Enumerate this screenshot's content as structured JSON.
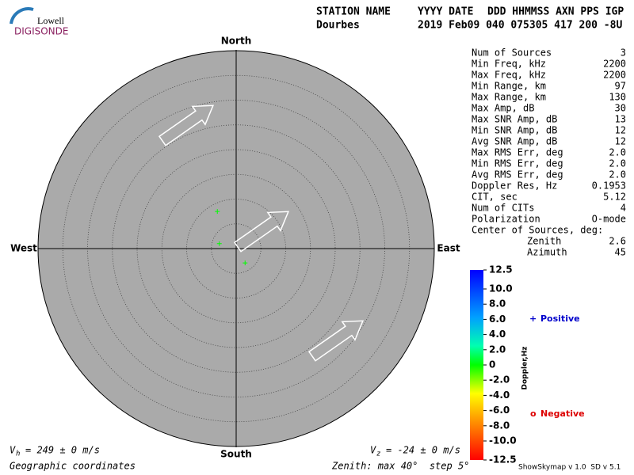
{
  "logo": {
    "top": "Lowell",
    "bottom": "DIGISONDE"
  },
  "header": {
    "columns": [
      "STATION NAME",
      "YYYY DATE",
      "DDD HHMMSS AXN PPS IGP"
    ],
    "values": [
      "Dourbes",
      "2019 Feb09 040 075305 417 200 -8U"
    ]
  },
  "stats": {
    "rows": [
      [
        "Num of Sources",
        "3"
      ],
      [
        "Min Freq, kHz",
        "2200"
      ],
      [
        "Max Freq, kHz",
        "2200"
      ],
      [
        "Min Range, km",
        "97"
      ],
      [
        "Max Range, km",
        "130"
      ],
      [
        "Max Amp, dB",
        "30"
      ],
      [
        "Max SNR Amp, dB",
        "13"
      ],
      [
        "Min SNR Amp, dB",
        "12"
      ],
      [
        "Avg SNR Amp, dB",
        "12"
      ],
      [
        "Max RMS Err, deg",
        "2.0"
      ],
      [
        "Min RMS Err, deg",
        "2.0"
      ],
      [
        "Avg RMS Err, deg",
        "2.0"
      ],
      [
        "Doppler Res, Hz",
        "0.1953"
      ],
      [
        "CIT, sec",
        "5.12"
      ],
      [
        "Num of CITs",
        "4"
      ],
      [
        "Polarization",
        "O-mode"
      ]
    ],
    "center_label": "Center of Sources, deg:",
    "center_rows": [
      [
        "Zenith",
        "2.6"
      ],
      [
        "Azimuth",
        "45"
      ]
    ]
  },
  "chart_data": {
    "type": "skymap",
    "directions": {
      "north": "North",
      "south": "South",
      "east": "East",
      "west": "West"
    },
    "xlim": [
      -40,
      40
    ],
    "ylim": [
      -40,
      40
    ],
    "rticks": [
      5,
      10,
      15,
      20,
      25,
      30,
      35,
      40
    ],
    "grid": true,
    "x": [
      -3.8,
      -3.4,
      1.8
    ],
    "values": [
      7.5,
      1.0,
      -2.9
    ],
    "color": "#00ff00"
  },
  "colorbar": {
    "title": "Doppler,Hz",
    "ylim": [
      -12.5,
      12.5
    ],
    "yticks": [
      12.5,
      {
        "value": 10,
        "label": "10.0"
      },
      {
        "value": 8,
        "label": "8.0"
      },
      {
        "value": 6,
        "label": "6.0"
      },
      {
        "value": 4,
        "label": "4.0"
      },
      {
        "value": 2,
        "label": "2.0"
      },
      0,
      {
        "value": -2,
        "label": "-2.0"
      },
      {
        "value": -4,
        "label": "-4.0"
      },
      {
        "value": -6,
        "label": "-6.0"
      },
      {
        "value": -8,
        "label": "-8.0"
      },
      {
        "value": -10,
        "label": "-10.0"
      },
      -12.5
    ]
  },
  "legend": {
    "positive": {
      "symbol": "+",
      "label": "Positive",
      "color": "#0000cc"
    },
    "negative": {
      "symbol": "o",
      "label": "Negative",
      "color": "#dd0000"
    }
  },
  "footer": {
    "vh": {
      "symbol": "V",
      "sub": "h",
      "text": "= 249 ± 0 m/s"
    },
    "vz": {
      "symbol": "V",
      "sub": "z",
      "text": "= -24 ± 0 m/s"
    },
    "coords": "Geographic coordinates",
    "zenith": "Zenith: max 40°  step 5°",
    "version": "ShowSkymap v 1.0  SD v 5.1"
  }
}
